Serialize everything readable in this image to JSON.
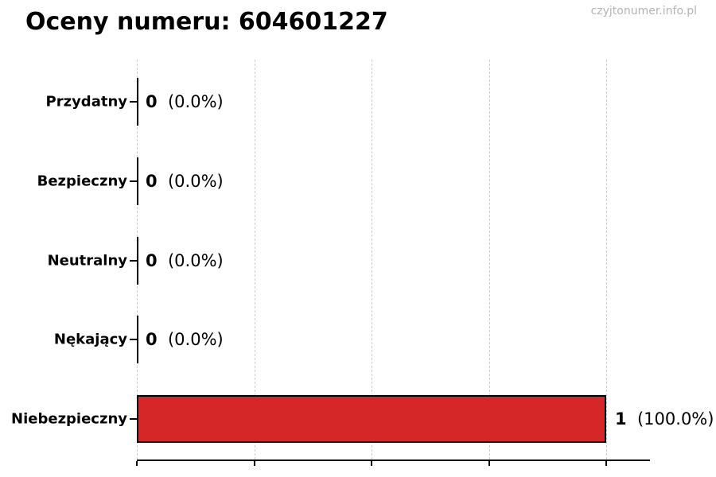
{
  "page": {
    "title": "Oceny numeru: 604601227",
    "watermark": "czyjtonumer.info.pl"
  },
  "chart_data": {
    "type": "bar",
    "orientation": "horizontal",
    "title": "Oceny numeru: 604601227",
    "watermark": "czyjtonumer.info.pl",
    "categories": [
      "Przydatny",
      "Bezpieczny",
      "Neutralny",
      "Nękający",
      "Niebezpieczny"
    ],
    "values": [
      0,
      0,
      0,
      0,
      1
    ],
    "value_labels": [
      {
        "count": "0",
        "pct": "(0.0%)"
      },
      {
        "count": "0",
        "pct": "(0.0%)"
      },
      {
        "count": "0",
        "pct": "(0.0%)"
      },
      {
        "count": "0",
        "pct": "(0.0%)"
      },
      {
        "count": "1",
        "pct": "(100.0%)"
      }
    ],
    "xlim": [
      0,
      1.09
    ],
    "x_ticks": [
      0,
      0.25,
      0.5,
      0.75,
      1.0
    ],
    "x_tick_labels": [],
    "grid": "vertical-dashed",
    "legend": "none",
    "colors": {
      "bar_fill": "#d62728",
      "bar_edge": "#000000",
      "zero_bar": "#000000",
      "grid": "#cccccc",
      "axis": "#000000",
      "text": "#000000",
      "watermark": "#b3b3b3",
      "background": "#ffffff"
    }
  }
}
